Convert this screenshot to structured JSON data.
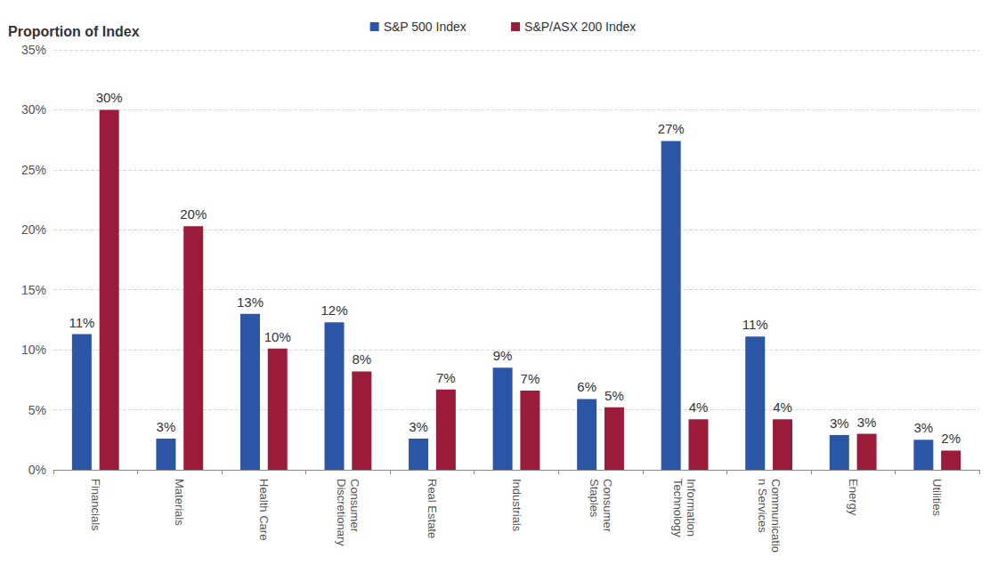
{
  "chart_data": {
    "type": "bar",
    "title": "Proportion of Index",
    "categories": [
      "Financials",
      "Materials",
      "Health Care",
      "Consumer Discretionary",
      "Real Estate",
      "Industrials",
      "Consumer Staples",
      "Information Technology",
      "Communication Services",
      "Energy",
      "Utilities"
    ],
    "series": [
      {
        "name": "S&P 500 Index",
        "color": "#2a56a5",
        "values": [
          11.3,
          2.6,
          13.0,
          12.3,
          2.6,
          8.5,
          5.9,
          27.4,
          11.1,
          2.9,
          2.5
        ],
        "value_labels": [
          "11%",
          "3%",
          "13%",
          "12%",
          "3%",
          "9%",
          "6%",
          "27%",
          "11%",
          "3%",
          "3%"
        ]
      },
      {
        "name": "S&P/ASX 200 Index",
        "color": "#9b1c3a",
        "values": [
          30.0,
          20.3,
          10.1,
          8.2,
          6.7,
          6.6,
          5.2,
          4.2,
          4.2,
          3.0,
          1.6
        ],
        "value_labels": [
          "30%",
          "20%",
          "10%",
          "8%",
          "7%",
          "7%",
          "5%",
          "4%",
          "4%",
          "3%",
          "2%"
        ]
      }
    ],
    "ylim": [
      0,
      35
    ],
    "yticks": [
      {
        "value": 0,
        "label": "0%"
      },
      {
        "value": 5,
        "label": "5%"
      },
      {
        "value": 10,
        "label": "10%"
      },
      {
        "value": 15,
        "label": "15%"
      },
      {
        "value": 20,
        "label": "20%"
      },
      {
        "value": 25,
        "label": "25%"
      },
      {
        "value": 30,
        "label": "30%"
      },
      {
        "value": 35,
        "label": "35%"
      }
    ],
    "grid": true,
    "legend": "top",
    "data_labels": true
  }
}
